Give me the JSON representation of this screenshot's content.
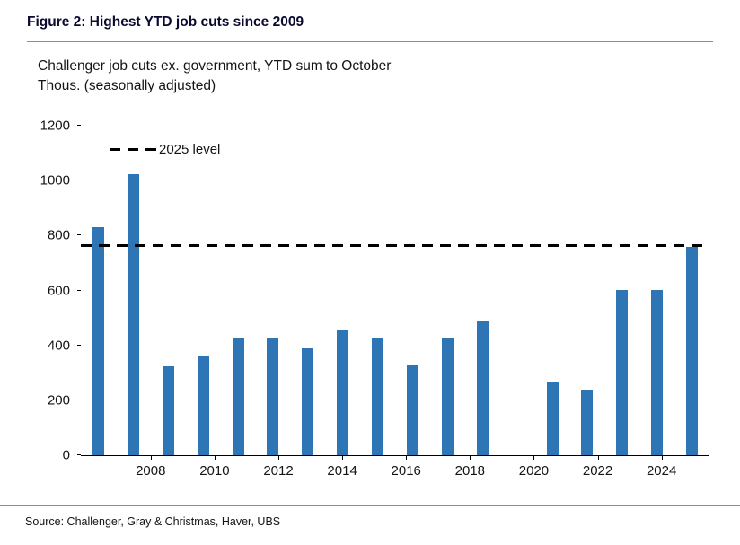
{
  "figure": {
    "title": "Figure 2: Highest YTD job cuts since 2009",
    "subtitle_line1": "Challenger job cuts ex. government, YTD sum to October",
    "subtitle_line2": "Thous. (seasonally adjusted)",
    "source": "Source: Challenger, Gray & Christmas, Haver, UBS"
  },
  "chart_data": {
    "type": "bar",
    "title": "Challenger job cuts ex. government, YTD sum to October",
    "ylabel": "Thous. (seasonally adjusted)",
    "categories": [
      2008,
      2009,
      2010,
      2011,
      2012,
      2013,
      2014,
      2015,
      2016,
      2017,
      2018,
      2019,
      2020,
      2021,
      2022,
      2023,
      2024,
      2025
    ],
    "values": [
      830,
      1022,
      325,
      362,
      427,
      424,
      389,
      458,
      430,
      331,
      424,
      486,
      null,
      264,
      240,
      601,
      601,
      760
    ],
    "ylim": [
      0,
      1200
    ],
    "ytick_step": 200,
    "ytick_labels": [
      "0",
      "200",
      "400",
      "600",
      "800",
      "1000",
      "1200"
    ],
    "xtick_labels": [
      "2008",
      "2010",
      "2012",
      "2014",
      "2016",
      "2018",
      "2020",
      "2022",
      "2024"
    ],
    "reference_line": {
      "label": "2025 level",
      "value": 760,
      "style": "dashed",
      "color": "#000000"
    },
    "legend": {
      "position": "top-left",
      "entries": [
        {
          "label": "2025 level",
          "style": "dashed-black-line"
        }
      ]
    },
    "bar_color": "#2E75B6",
    "grid": false
  }
}
